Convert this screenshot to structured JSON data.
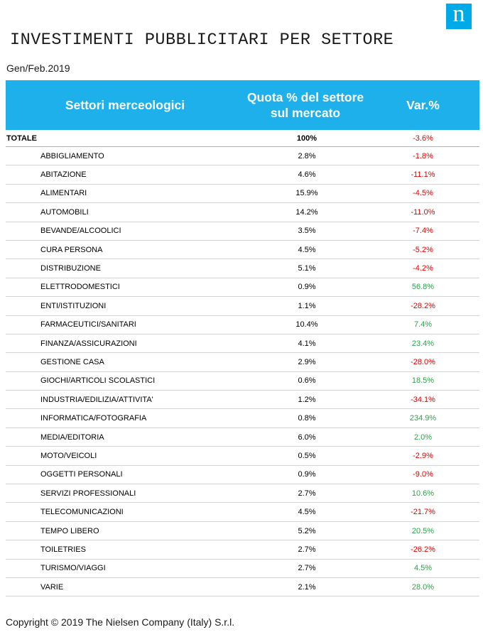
{
  "logo_letter": "n",
  "title": "INVESTIMENTI PUBBLICITARI PER SETTORE",
  "period": "Gen/Feb.2019",
  "header": {
    "col_sector": "Settori merceologici",
    "col_share": "Quota % del settore sul mercato",
    "col_var": "Var.%",
    "background_color": "#1db0ea"
  },
  "total": {
    "sector": "TOTALE",
    "share": "100%",
    "var": "-3.6%"
  },
  "rows": [
    {
      "sector": "ABBIGLIAMENTO",
      "share": "2.8%",
      "var": "-1.8%",
      "dir": "neg"
    },
    {
      "sector": "ABITAZIONE",
      "share": "4.6%",
      "var": "-11.1%",
      "dir": "neg"
    },
    {
      "sector": "ALIMENTARI",
      "share": "15.9%",
      "var": "-4.5%",
      "dir": "neg"
    },
    {
      "sector": "AUTOMOBILI",
      "share": "14.2%",
      "var": "-11.0%",
      "dir": "neg"
    },
    {
      "sector": "BEVANDE/ALCOOLICI",
      "share": "3.5%",
      "var": "-7.4%",
      "dir": "neg"
    },
    {
      "sector": "CURA PERSONA",
      "share": "4.5%",
      "var": "-5.2%",
      "dir": "neg"
    },
    {
      "sector": "DISTRIBUZIONE",
      "share": "5.1%",
      "var": "-4.2%",
      "dir": "neg"
    },
    {
      "sector": "ELETTRODOMESTICI",
      "share": "0.9%",
      "var": "56.8%",
      "dir": "pos"
    },
    {
      "sector": "ENTI/ISTITUZIONI",
      "share": "1.1%",
      "var": "-28.2%",
      "dir": "neg"
    },
    {
      "sector": "FARMACEUTICI/SANITARI",
      "share": "10.4%",
      "var": "7.4%",
      "dir": "pos"
    },
    {
      "sector": "FINANZA/ASSICURAZIONI",
      "share": "4.1%",
      "var": "23.4%",
      "dir": "pos"
    },
    {
      "sector": "GESTIONE CASA",
      "share": "2.9%",
      "var": "-28.0%",
      "dir": "neg"
    },
    {
      "sector": "GIOCHI/ARTICOLI SCOLASTICI",
      "share": "0.6%",
      "var": "18.5%",
      "dir": "pos"
    },
    {
      "sector": "INDUSTRIA/EDILIZIA/ATTIVITA'",
      "share": "1.2%",
      "var": "-34.1%",
      "dir": "neg"
    },
    {
      "sector": "INFORMATICA/FOTOGRAFIA",
      "share": "0.8%",
      "var": "234.9%",
      "dir": "pos"
    },
    {
      "sector": "MEDIA/EDITORIA",
      "share": "6.0%",
      "var": "2.0%",
      "dir": "pos"
    },
    {
      "sector": "MOTO/VEICOLI",
      "share": "0.5%",
      "var": "-2.9%",
      "dir": "neg"
    },
    {
      "sector": "OGGETTI PERSONALI",
      "share": "0.9%",
      "var": "-9.0%",
      "dir": "neg"
    },
    {
      "sector": "SERVIZI PROFESSIONALI",
      "share": "2.7%",
      "var": "10.6%",
      "dir": "pos"
    },
    {
      "sector": "TELECOMUNICAZIONI",
      "share": "4.5%",
      "var": "-21.7%",
      "dir": "neg"
    },
    {
      "sector": "TEMPO LIBERO",
      "share": "5.2%",
      "var": "20.5%",
      "dir": "pos"
    },
    {
      "sector": "TOILETRIES",
      "share": "2.7%",
      "var": "-26.2%",
      "dir": "neg"
    },
    {
      "sector": "TURISMO/VIAGGI",
      "share": "2.7%",
      "var": "4.5%",
      "dir": "pos"
    },
    {
      "sector": "VARIE",
      "share": "2.1%",
      "var": "28.0%",
      "dir": "pos"
    }
  ],
  "colors": {
    "negative": "#e00000",
    "positive": "#2ca24a"
  },
  "copyright": "Copyright © 2019 The Nielsen Company (Italy) S.r.l."
}
